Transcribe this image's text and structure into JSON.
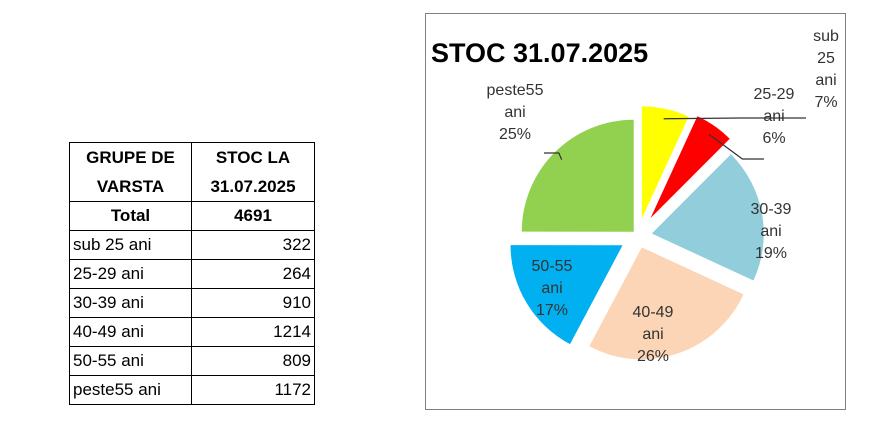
{
  "table": {
    "header": [
      "GRUPE DE",
      "VARSTA",
      "STOC LA",
      "31.07.2025"
    ],
    "total_label": "Total",
    "total_value": "4691",
    "rows": [
      {
        "group": "sub 25 ani",
        "value": "322"
      },
      {
        "group": "25-29 ani",
        "value": "264"
      },
      {
        "group": "30-39 ani",
        "value": "910"
      },
      {
        "group": "40-49 ani",
        "value": "1214"
      },
      {
        "group": "50-55 ani",
        "value": "809"
      },
      {
        "group": "peste55 ani",
        "value": "1172"
      }
    ]
  },
  "chart_data": {
    "type": "pie",
    "title": "STOC 31.07.2025",
    "categories": [
      "sub 25 ani",
      "25-29 ani",
      "30-39 ani",
      "40-49 ani",
      "50-55 ani",
      "peste55 ani"
    ],
    "values": [
      322,
      264,
      910,
      1214,
      809,
      1172
    ],
    "percent_labels": [
      "7%",
      "6%",
      "19%",
      "26%",
      "17%",
      "25%"
    ],
    "colors": [
      "#FFFF00",
      "#FF0000",
      "#92CDDC",
      "#FBD5B5",
      "#00B0F0",
      "#92D050"
    ],
    "exploded": true
  }
}
